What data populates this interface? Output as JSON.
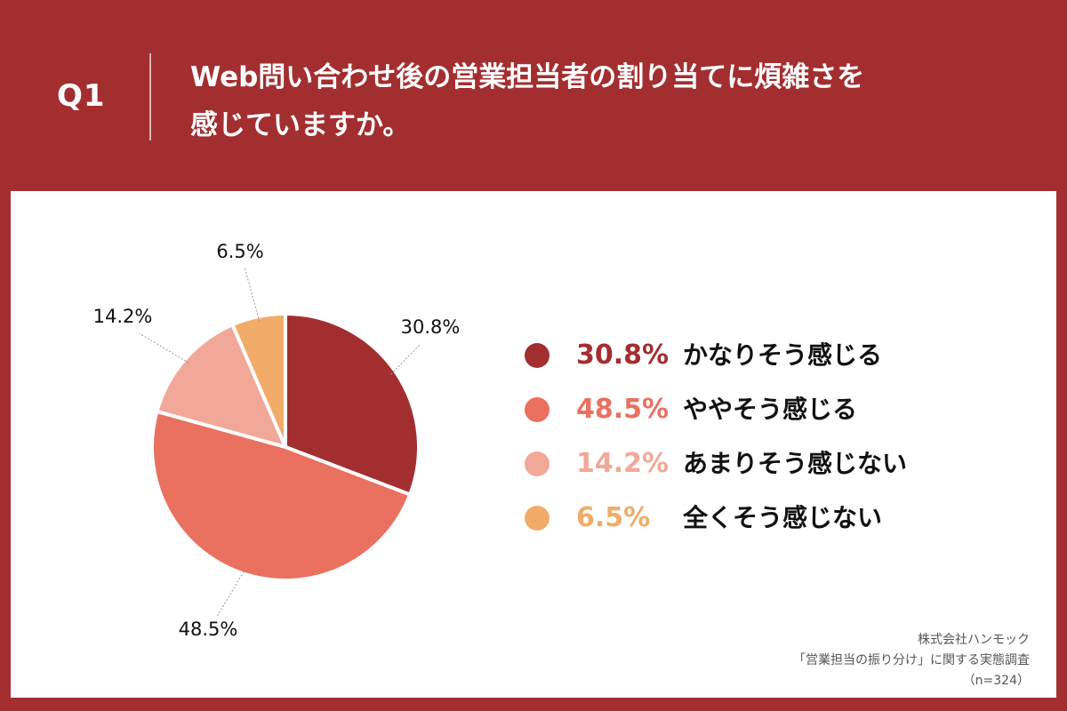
{
  "header": {
    "q_label": "Q1",
    "question_line1": "Web問い合わせ後の営業担当者の割り当てに煩雑さを",
    "question_line2": "感じていますか。"
  },
  "colors": {
    "background": "#a32e30",
    "panel": "#ffffff"
  },
  "chart_data": {
    "type": "pie",
    "slices": [
      {
        "label": "かなりそう感じる",
        "value": 30.8,
        "value_label": "30.8%",
        "color": "#a32e30"
      },
      {
        "label": "ややそう感じる",
        "value": 48.5,
        "value_label": "48.5%",
        "color": "#ea7060"
      },
      {
        "label": "あまりそう感じない",
        "value": 14.2,
        "value_label": "14.2%",
        "color": "#f2a898"
      },
      {
        "label": "全くそう感じない",
        "value": 6.5,
        "value_label": "6.5%",
        "color": "#f1ac6a"
      }
    ],
    "start_angle": "12 o'clock",
    "direction": "clockwise",
    "legend_placement": "right"
  },
  "source": {
    "line1": "株式会社ハンモック",
    "line2": "「営業担当の振り分け」に関する実態調査",
    "line3": "（n=324）"
  }
}
